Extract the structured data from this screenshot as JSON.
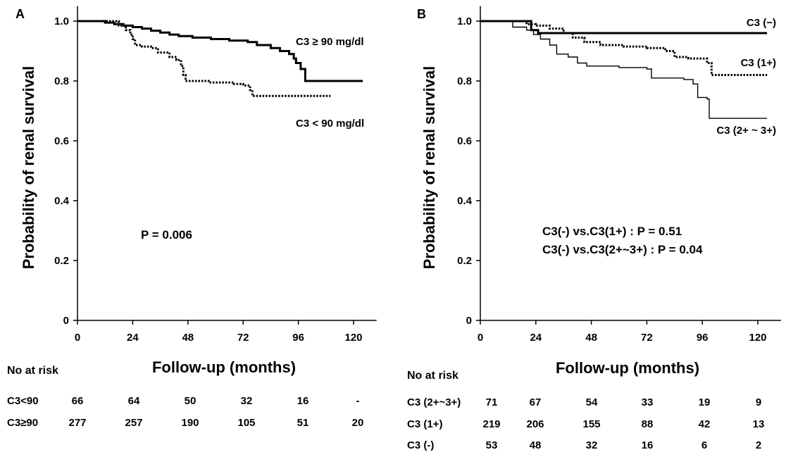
{
  "chart_data": [
    {
      "type": "line",
      "panel": "A",
      "xlabel": "Follow-up (months)",
      "ylabel": "Probability of renal survival",
      "xlim": [
        0,
        130
      ],
      "ylim": [
        0,
        1.05
      ],
      "xticks": [
        0,
        24,
        48,
        72,
        96,
        120
      ],
      "yticks": [
        0,
        0.2,
        0.4,
        0.6,
        0.8,
        1.0
      ],
      "ytick_labels": [
        "0",
        "0.2",
        "0.4",
        "0.6",
        "0.8",
        "1.0"
      ],
      "series": [
        {
          "name": "C3 ≥ 90 mg/dl",
          "style": "solid",
          "points": [
            [
              0,
              1.0
            ],
            [
              8,
              1.0
            ],
            [
              12,
              0.995
            ],
            [
              16,
              0.99
            ],
            [
              20,
              0.985
            ],
            [
              24,
              0.98
            ],
            [
              28,
              0.975
            ],
            [
              32,
              0.968
            ],
            [
              36,
              0.962
            ],
            [
              40,
              0.955
            ],
            [
              44,
              0.95
            ],
            [
              50,
              0.945
            ],
            [
              58,
              0.94
            ],
            [
              66,
              0.935
            ],
            [
              74,
              0.93
            ],
            [
              78,
              0.92
            ],
            [
              84,
              0.91
            ],
            [
              88,
              0.9
            ],
            [
              92,
              0.89
            ],
            [
              94,
              0.875
            ],
            [
              95,
              0.86
            ],
            [
              97,
              0.84
            ],
            [
              99,
              0.8
            ],
            [
              124,
              0.8
            ]
          ]
        },
        {
          "name": "C3 < 90 mg/dl",
          "style": "dotted",
          "points": [
            [
              0,
              1.0
            ],
            [
              14,
              1.0
            ],
            [
              18,
              0.985
            ],
            [
              21,
              0.97
            ],
            [
              23,
              0.955
            ],
            [
              24,
              0.94
            ],
            [
              25,
              0.92
            ],
            [
              28,
              0.915
            ],
            [
              32,
              0.91
            ],
            [
              35,
              0.895
            ],
            [
              40,
              0.88
            ],
            [
              43,
              0.87
            ],
            [
              45,
              0.85
            ],
            [
              46,
              0.82
            ],
            [
              47,
              0.8
            ],
            [
              57,
              0.795
            ],
            [
              68,
              0.79
            ],
            [
              72,
              0.785
            ],
            [
              75,
              0.77
            ],
            [
              76,
              0.75
            ],
            [
              110,
              0.75
            ]
          ]
        }
      ],
      "annotations": [
        {
          "text": "C3 ≥ 90 mg/dl"
        },
        {
          "text": "C3 < 90 mg/dl"
        },
        {
          "text": "P = 0.006"
        }
      ],
      "risk_table": {
        "header": "No at risk",
        "rows": [
          {
            "label": "C3<90",
            "values": [
              "66",
              "64",
              "50",
              "32",
              "16",
              "-"
            ]
          },
          {
            "label": "C3≥90",
            "values": [
              "277",
              "257",
              "190",
              "105",
              "51",
              "20"
            ]
          }
        ]
      }
    },
    {
      "type": "line",
      "panel": "B",
      "xlabel": "Follow-up (months)",
      "ylabel": "Probability of renal survival",
      "xlim": [
        0,
        130
      ],
      "ylim": [
        0,
        1.05
      ],
      "xticks": [
        0,
        24,
        48,
        72,
        96,
        120
      ],
      "yticks": [
        0,
        0.2,
        0.4,
        0.6,
        0.8,
        1.0
      ],
      "ytick_labels": [
        "0",
        "0.2",
        "0.4",
        "0.6",
        "0.8",
        "1.0"
      ],
      "series": [
        {
          "name": "C3 (−)",
          "style": "solid-thick",
          "points": [
            [
              0,
              1.0
            ],
            [
              20,
              1.0
            ],
            [
              22,
              0.97
            ],
            [
              25,
              0.96
            ],
            [
              124,
              0.96
            ]
          ]
        },
        {
          "name": "C3 (1+)",
          "style": "dotted",
          "points": [
            [
              0,
              1.0
            ],
            [
              18,
              1.0
            ],
            [
              20,
              0.99
            ],
            [
              24,
              0.985
            ],
            [
              30,
              0.975
            ],
            [
              36,
              0.96
            ],
            [
              40,
              0.945
            ],
            [
              45,
              0.93
            ],
            [
              52,
              0.92
            ],
            [
              62,
              0.915
            ],
            [
              72,
              0.91
            ],
            [
              80,
              0.9
            ],
            [
              84,
              0.88
            ],
            [
              90,
              0.875
            ],
            [
              98,
              0.86
            ],
            [
              100,
              0.82
            ],
            [
              124,
              0.82
            ]
          ]
        },
        {
          "name": "C3 (2+ ~ 3+)",
          "style": "thin",
          "points": [
            [
              0,
              1.0
            ],
            [
              12,
              1.0
            ],
            [
              14,
              0.98
            ],
            [
              20,
              0.97
            ],
            [
              23,
              0.955
            ],
            [
              26,
              0.94
            ],
            [
              30,
              0.92
            ],
            [
              33,
              0.89
            ],
            [
              38,
              0.88
            ],
            [
              42,
              0.86
            ],
            [
              46,
              0.85
            ],
            [
              60,
              0.845
            ],
            [
              72,
              0.84
            ],
            [
              74,
              0.81
            ],
            [
              88,
              0.805
            ],
            [
              92,
              0.79
            ],
            [
              94,
              0.745
            ],
            [
              98,
              0.74
            ],
            [
              99,
              0.675
            ],
            [
              124,
              0.675
            ]
          ]
        }
      ],
      "annotations": [
        {
          "text": "C3 (−)"
        },
        {
          "text": "C3 (1+)"
        },
        {
          "text": "C3 (2+ ~ 3+)"
        },
        {
          "text": "C3(-) vs.C3(1+) : P = 0.51"
        },
        {
          "text": "C3(-) vs.C3(2+~3+) : P = 0.04"
        }
      ],
      "risk_table": {
        "header": "No at risk",
        "rows": [
          {
            "label": "C3 (2+~3+)",
            "values": [
              "71",
              "67",
              "54",
              "33",
              "19",
              "9"
            ]
          },
          {
            "label": "C3 (1+)",
            "values": [
              "219",
              "206",
              "155",
              "88",
              "42",
              "13"
            ]
          },
          {
            "label": "C3 (-)",
            "values": [
              "53",
              "48",
              "32",
              "16",
              "6",
              "2"
            ]
          }
        ]
      }
    }
  ]
}
